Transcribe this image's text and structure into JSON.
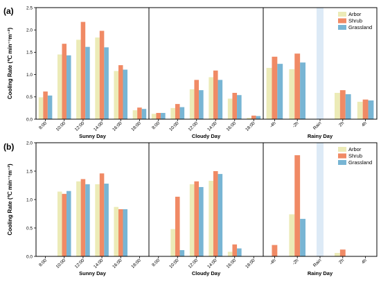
{
  "colors": {
    "Arbor": "#ecebb7",
    "Shrub": "#f08a65",
    "Grassland": "#78b5d4",
    "rain_band": "#ddeaf6",
    "frame": "#000000"
  },
  "legend": [
    "Arbor",
    "Shrub",
    "Grassland"
  ],
  "chart_data": [
    {
      "type": "bar",
      "panel_label": "(a)",
      "ylabel": "Cooling Rate (℃ min⁻¹m⁻²)",
      "ylim": [
        0,
        2.5
      ],
      "yticks": [
        "0.0",
        "0.5",
        "1.0",
        "1.5",
        "2.0",
        "2.5"
      ],
      "legend_position": "top-right",
      "rain_band": {
        "subplot": 2,
        "category": "Rain"
      },
      "series": [
        {
          "name": "Arbor"
        },
        {
          "name": "Shrub"
        },
        {
          "name": "Grassland"
        }
      ],
      "subplots": [
        {
          "xlabel": "Sunny Day",
          "categories": [
            "8:00",
            "10:00",
            "12:00",
            "14:00",
            "16:00",
            "18:00"
          ],
          "values": {
            "Arbor": [
              0.49,
              1.45,
              1.78,
              1.83,
              1.08,
              0.2
            ],
            "Shrub": [
              0.62,
              1.69,
              2.18,
              1.98,
              1.21,
              0.26
            ],
            "Grassland": [
              0.53,
              1.43,
              1.62,
              1.61,
              1.11,
              0.23
            ]
          }
        },
        {
          "xlabel": "Cloudy Day",
          "categories": [
            "8:00",
            "10:00",
            "12:00",
            "14:00",
            "16:00",
            "18:00"
          ],
          "values": {
            "Arbor": [
              0.12,
              0.25,
              0.67,
              0.94,
              0.46,
              0.03
            ],
            "Shrub": [
              0.14,
              0.34,
              0.88,
              1.09,
              0.59,
              0.08
            ],
            "Grassland": [
              0.14,
              0.27,
              0.65,
              0.88,
              0.54,
              0.07
            ]
          }
        },
        {
          "xlabel": "Rainy Day",
          "categories": [
            "-4h",
            "-2h",
            "Rain",
            "2h",
            "4h"
          ],
          "values": {
            "Arbor": [
              1.15,
              1.12,
              null,
              0.59,
              0.39
            ],
            "Shrub": [
              1.4,
              1.47,
              null,
              0.65,
              0.44
            ],
            "Grassland": [
              1.24,
              1.27,
              null,
              0.56,
              0.42
            ]
          }
        }
      ]
    },
    {
      "type": "bar",
      "panel_label": "(b)",
      "ylabel": "Cooling Rate (℃ min⁻¹m⁻²)",
      "ylim": [
        0,
        2.0
      ],
      "yticks": [
        "0.0",
        "0.5",
        "1.0",
        "1.5",
        "2.0"
      ],
      "legend_position": "top-right",
      "rain_band": {
        "subplot": 2,
        "category": "Rain"
      },
      "series": [
        {
          "name": "Arbor"
        },
        {
          "name": "Shrub"
        },
        {
          "name": "Grassland"
        }
      ],
      "subplots": [
        {
          "xlabel": "Sunny Day",
          "categories": [
            "8:00",
            "10:00",
            "12:00",
            "14:00",
            "16:00",
            "18:00"
          ],
          "values": {
            "Arbor": [
              null,
              1.14,
              1.32,
              1.27,
              0.87,
              null
            ],
            "Shrub": [
              null,
              1.1,
              1.36,
              1.46,
              0.83,
              null
            ],
            "Grassland": [
              null,
              1.15,
              1.27,
              1.28,
              0.83,
              null
            ]
          }
        },
        {
          "xlabel": "Cloudy Day",
          "categories": [
            "8:00",
            "10:00",
            "12:00",
            "14:00",
            "16:00",
            "18:00"
          ],
          "values": {
            "Arbor": [
              null,
              0.48,
              1.27,
              1.33,
              0.08,
              null
            ],
            "Shrub": [
              null,
              1.05,
              1.32,
              1.5,
              0.21,
              null
            ],
            "Grassland": [
              null,
              0.11,
              1.22,
              1.45,
              0.14,
              null
            ]
          }
        },
        {
          "xlabel": "Rainy Day",
          "categories": [
            "-4h",
            "-2h",
            "Rain",
            "2h",
            "4h"
          ],
          "values": {
            "Arbor": [
              null,
              0.74,
              null,
              0.06,
              null
            ],
            "Shrub": [
              0.2,
              1.78,
              null,
              0.12,
              null
            ],
            "Grassland": [
              null,
              0.66,
              null,
              null,
              null
            ]
          }
        }
      ]
    }
  ]
}
